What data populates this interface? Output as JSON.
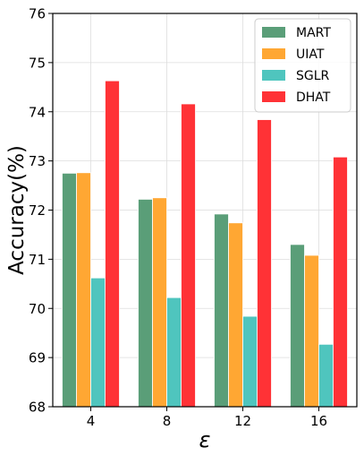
{
  "chart_data": {
    "type": "bar",
    "title": "",
    "xlabel": "ε",
    "ylabel": "Accuracy(%)",
    "categories": [
      "4",
      "8",
      "12",
      "16"
    ],
    "ylim": [
      68,
      76
    ],
    "yticks": [
      "68",
      "69",
      "70",
      "71",
      "72",
      "73",
      "74",
      "75",
      "76"
    ],
    "grid": true,
    "legend_position": "top-right",
    "series": [
      {
        "name": "MART",
        "color": "#5a9e78",
        "values": [
          72.75,
          72.22,
          71.92,
          71.3
        ]
      },
      {
        "name": "UIAT",
        "color": "#ffa733",
        "values": [
          72.76,
          72.25,
          71.74,
          71.08
        ]
      },
      {
        "name": "SGLR",
        "color": "#4fc5be",
        "values": [
          70.62,
          70.22,
          69.84,
          69.27
        ]
      },
      {
        "name": "DHAT",
        "color": "#ff3236",
        "values": [
          74.63,
          74.16,
          73.84,
          73.08
        ]
      }
    ]
  }
}
